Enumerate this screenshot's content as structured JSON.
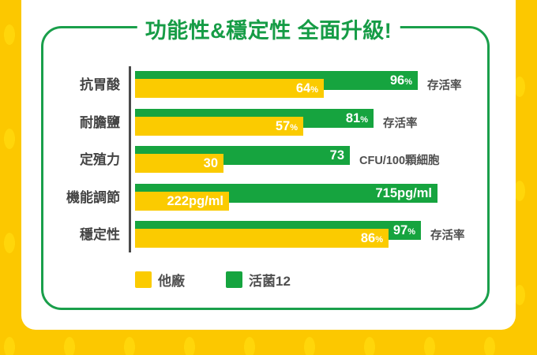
{
  "title": "功能性&穩定性 全面升級!",
  "colors": {
    "background": "#FCC800",
    "pattern_pill": "#FFD60A",
    "card": "#FFFFFF",
    "green": "#16A43F",
    "yellow": "#FBCB00",
    "frame_border": "#1A9F4B",
    "axis": "#4A4A4A",
    "label_text": "#4F4F4F",
    "value_text": "#FFFFFF",
    "title_text": "#169C46"
  },
  "legend": [
    {
      "label": "他廠",
      "color": "#FBCB00"
    },
    {
      "label": "活菌12",
      "color": "#16A43F"
    }
  ],
  "chart_data": {
    "type": "bar",
    "orientation": "horizontal",
    "title": "功能性&穩定性 全面升級!",
    "categories": [
      "抗胃酸",
      "耐膽鹽",
      "定殖力",
      "機能調節",
      "穩定性"
    ],
    "series": [
      {
        "name": "他廠",
        "color": "#FBCB00",
        "values": [
          64,
          57,
          30,
          222,
          86
        ]
      },
      {
        "name": "活菌12",
        "color": "#16A43F",
        "values": [
          96,
          81,
          73,
          715,
          97
        ]
      }
    ],
    "legend_position": "bottom",
    "grid": false,
    "rows": [
      {
        "category": "抗胃酸",
        "yellow": {
          "value": 64,
          "label": "64",
          "suffix": "%"
        },
        "green": {
          "value": 96,
          "label": "96",
          "suffix": "%"
        },
        "unit_label": "存活率",
        "axis_max": 122
      },
      {
        "category": "耐膽鹽",
        "yellow": {
          "value": 57,
          "label": "57",
          "suffix": "%"
        },
        "green": {
          "value": 81,
          "label": "81",
          "suffix": "%"
        },
        "unit_label": "存活率",
        "axis_max": 122
      },
      {
        "category": "定殖力",
        "yellow": {
          "value": 30,
          "label": "30",
          "suffix": ""
        },
        "green": {
          "value": 73,
          "label": "73",
          "suffix": ""
        },
        "unit_label": "CFU/100顆細胞",
        "axis_max": 122
      },
      {
        "category": "機能調節",
        "yellow": {
          "value": 222,
          "label": "222pg/ml",
          "suffix": ""
        },
        "green": {
          "value": 715,
          "label": "715pg/ml",
          "suffix": ""
        },
        "unit_label": "",
        "axis_max": 850
      },
      {
        "category": "穩定性",
        "yellow": {
          "value": 86,
          "label": "86",
          "suffix": "%"
        },
        "green": {
          "value": 97,
          "label": "97",
          "suffix": "%"
        },
        "unit_label": "存活率",
        "axis_max": 122
      }
    ]
  }
}
